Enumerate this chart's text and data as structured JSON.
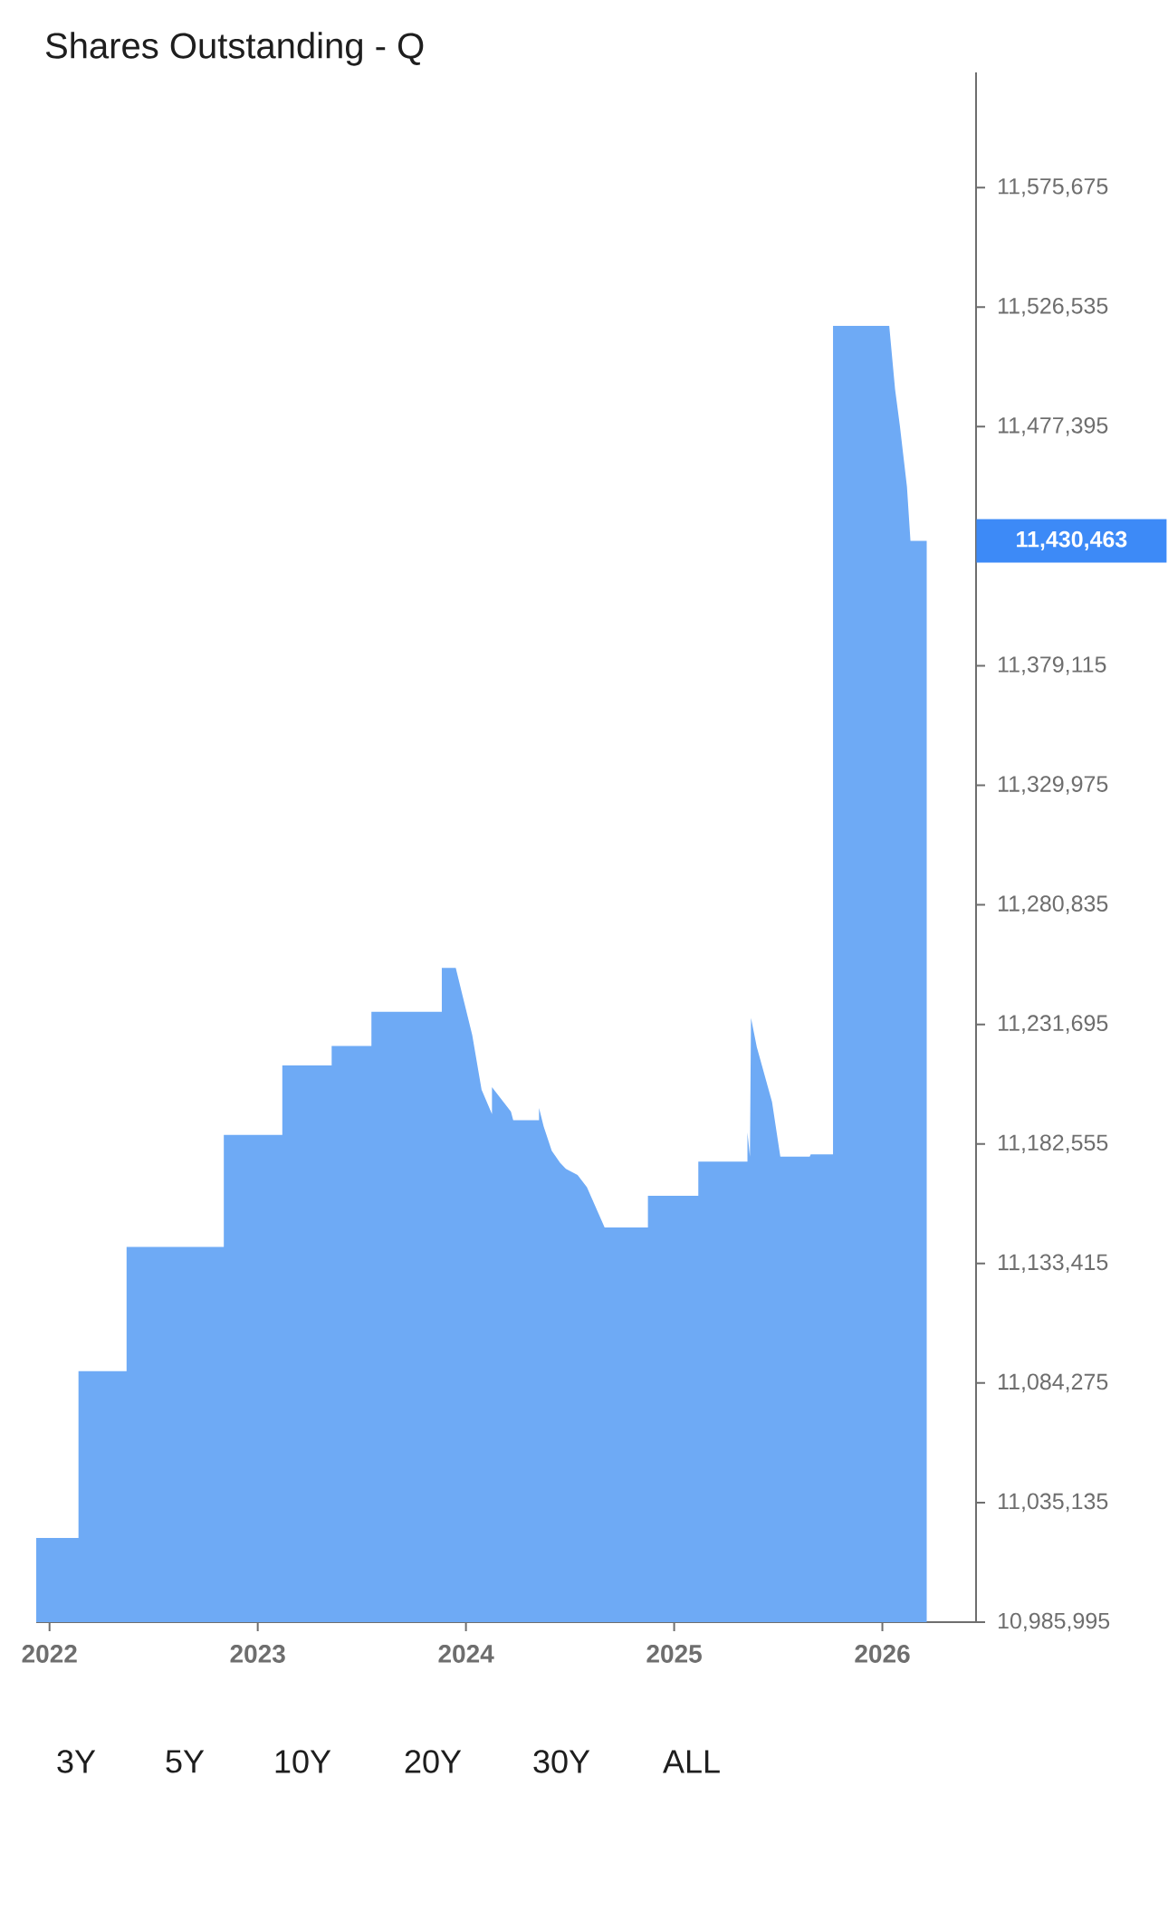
{
  "chart_data": {
    "type": "area",
    "title": "Shares Outstanding - Q",
    "color": "#6eaaf5",
    "x": [
      2021.936,
      2022.139,
      2022.139,
      2022.37,
      2022.37,
      2022.837,
      2022.837,
      2023.118,
      2023.118,
      2023.355,
      2023.355,
      2023.546,
      2023.546,
      2023.884,
      2023.884,
      2023.951,
      2024.03,
      2024.075,
      2024.125,
      2024.125,
      2024.216,
      2024.227,
      2024.351,
      2024.351,
      2024.373,
      2024.412,
      2024.452,
      2024.48,
      2024.536,
      2024.581,
      2024.666,
      2024.874,
      2024.874,
      2025.116,
      2025.116,
      2025.352,
      2025.352,
      2025.364,
      2025.369,
      2025.397,
      2025.47,
      2025.51,
      2025.651,
      2025.656,
      2025.763,
      2025.763,
      2026.033,
      2026.061,
      2026.084,
      2026.118,
      2026.135,
      2026.213
    ],
    "values": [
      11020550,
      11020550,
      11089160,
      11089160,
      11140240,
      11140240,
      11186300,
      11186300,
      11214860,
      11214860,
      11222870,
      11222870,
      11236890,
      11236890,
      11254920,
      11254920,
      11227380,
      11204840,
      11194830,
      11205850,
      11195830,
      11192320,
      11192320,
      11197340,
      11189820,
      11179800,
      11174790,
      11172290,
      11169790,
      11164780,
      11148250,
      11148250,
      11161270,
      11161270,
      11175290,
      11175290,
      11187310,
      11177300,
      11234390,
      11222370,
      11199830,
      11177300,
      11177300,
      11178300,
      11178300,
      11518850,
      11518850,
      11492800,
      11477800,
      11452750,
      11430463,
      11430463
    ],
    "xlim": [
      2021.936,
      2026.45
    ],
    "xticks": [
      2022,
      2023,
      2024,
      2025,
      2026
    ],
    "ylim": [
      10985995,
      11623000
    ],
    "yticks": [
      {
        "value": 10985995,
        "label": "10,985,995"
      },
      {
        "value": 11035135,
        "label": "11,035,135"
      },
      {
        "value": 11084275,
        "label": "11,084,275"
      },
      {
        "value": 11133415,
        "label": "11,133,415"
      },
      {
        "value": 11182555,
        "label": "11,182,555"
      },
      {
        "value": 11231695,
        "label": "11,231,695"
      },
      {
        "value": 11280835,
        "label": "11,280,835"
      },
      {
        "value": 11329975,
        "label": "11,329,975"
      },
      {
        "value": 11379115,
        "label": "11,379,115"
      },
      {
        "value": 11428255,
        "label": null
      },
      {
        "value": 11477395,
        "label": "11,477,395"
      },
      {
        "value": 11526535,
        "label": "11,526,535"
      },
      {
        "value": 11575675,
        "label": "11,575,675"
      }
    ],
    "annotations": [
      "11,430,463",
      "3Y",
      "5Y",
      "10Y",
      "20Y",
      "30Y",
      "ALL"
    ]
  }
}
